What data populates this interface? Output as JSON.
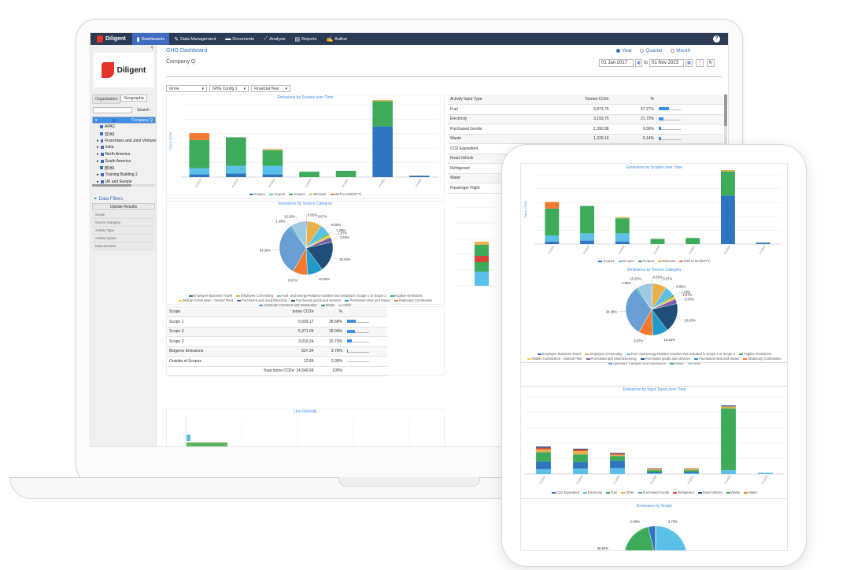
{
  "nav": {
    "brand": "Diligent",
    "items": [
      {
        "label": "Dashboards",
        "icon": "bar-chart-icon",
        "active": true
      },
      {
        "label": "Data Management",
        "icon": "edit-icon",
        "active": false
      },
      {
        "label": "Documents",
        "icon": "folder-icon",
        "active": false
      },
      {
        "label": "Analysis",
        "icon": "line-chart-icon",
        "active": false
      },
      {
        "label": "Reports",
        "icon": "report-icon",
        "active": false
      },
      {
        "label": "Author",
        "icon": "author-icon",
        "active": false
      }
    ],
    "help": "?"
  },
  "sidebar": {
    "logo_text": "Diligent",
    "tabs": [
      "Organisation",
      "Geographic"
    ],
    "search_button": "Search",
    "tree": [
      "Company Q",
      "APAC",
      "亚洲1",
      "Franchises and Joint Venture",
      "India",
      "North America",
      "South America",
      "欧洲1",
      "Training Building 2",
      "UK and Europe"
    ],
    "filters_title": "Data Filters",
    "update_button": "Update Results",
    "filters": [
      "Scope",
      "Source Category",
      "Activity Type",
      "Activity Inputs",
      "Data Streams"
    ]
  },
  "header": {
    "page_title": "GHG Dashboard",
    "company": "Company Q",
    "period_options": [
      "Year",
      "Quarter",
      "Month"
    ],
    "selected_period": "Year",
    "date_from": "01 Jan 2017",
    "date_to_label": "to",
    "date_to": "01 Nov 2023"
  },
  "filters_bar": {
    "unit": "tonne",
    "config": "GHG Config 1",
    "year": "Financial Year"
  },
  "scopes_chart": {
    "title": "Emissions by Scopes over Time",
    "ylabel": "Tonne CO2e",
    "legend": [
      "Scope1",
      "Scope2",
      "Scope3",
      "Biomass",
      "Well to tank(WTT)"
    ]
  },
  "category_chart": {
    "title": "Emissions by Source Category",
    "labels": [
      "0.65%",
      "9.67%",
      "10.23%",
      "6.56%",
      "1.06%",
      "1.28%",
      "1.87%",
      "3.26%",
      "34.36%",
      "20.03%",
      "9.67%",
      "10.32%"
    ],
    "legend": [
      "Employee Business Travel",
      "Employee Commuting",
      "Fuel- and Energy-Related Activities Not Included in Scope 1 or Scope 2",
      "Fugitive Emissions",
      "Mobile Combustion - Owned Fleet",
      "Purchased and Used Electricity",
      "Purchased goods and services",
      "Purchased Heat and Steam",
      "Stationary Combustion",
      "Upstream Transport and Distribution",
      "Waste",
      "Other"
    ]
  },
  "scope_table": {
    "headers": [
      "Scope",
      "tonne CO2e",
      "%"
    ],
    "rows": [
      [
        "Scope 1",
        "5,609.17",
        "38.58%"
      ],
      [
        "Scope 3",
        "5,371.06",
        "36.94%"
      ],
      [
        "Scope 2",
        "3,010.24",
        "20.70%"
      ],
      [
        "Biogenic Emissions",
        "537.34",
        "3.70%"
      ],
      [
        "Outside of Scopes",
        "12.85",
        "0.09%"
      ]
    ],
    "total": "Total tonne CO2e: 14,540.66",
    "total_pct": "100%"
  },
  "input_table": {
    "headers": [
      "Activity Input Type",
      "Tonnes CO2e",
      "%"
    ],
    "rows": [
      [
        "Fuel",
        "6,873.75",
        "47.27%"
      ],
      [
        "Electricity",
        "3,159.75",
        "21.73%"
      ],
      [
        "Purchased Goods",
        "1,392.88",
        "9.58%"
      ],
      [
        "Waste",
        "1,329.16",
        "9.14%"
      ],
      [
        "CO2 Equivalent",
        "",
        ""
      ],
      [
        "Road Vehicle",
        "",
        ""
      ],
      [
        "Refrigerant",
        "",
        ""
      ],
      [
        "Water",
        "",
        ""
      ],
      [
        "Passenger Flight",
        "",
        ""
      ]
    ]
  },
  "line_intensity": {
    "title": "Line Intensity"
  },
  "tablet": {
    "scopes_title": "Emissions by Scopes over Time",
    "category_title": "Emissions by Source Category",
    "input_title": "Emissions by Input Types over Time",
    "input_legend": [
      "CO2 Equivalent",
      "Electricity",
      "Fuel",
      "Other",
      "Purchased Goods",
      "Refrigerant",
      "Road Vehicle",
      "Waste",
      "Water"
    ],
    "scope_pie_title": "Emissions by Scope",
    "scope_pie_labels": [
      "0.09%",
      "3.70%",
      "36.94%"
    ]
  },
  "colors": {
    "scope1": "#2f74c0",
    "scope2": "#5bc0e8",
    "scope3": "#3dab5a",
    "biomass": "#e8b04d",
    "wtt": "#f07a32",
    "nav": "#2b3a55",
    "accent": "#3d8ee6"
  },
  "chart_data": [
    {
      "type": "bar",
      "title": "Emissions by Scopes over Time",
      "ylabel": "Tonne CO2e",
      "categories": [
        "FY2017",
        "FY2018",
        "FY2019",
        "FY2020",
        "FY2021",
        "FY2022",
        "FY2023"
      ],
      "series": [
        {
          "name": "Scope1",
          "values": [
            150,
            200,
            150,
            0,
            0,
            2800,
            80
          ]
        },
        {
          "name": "Scope2",
          "values": [
            350,
            420,
            470,
            0,
            0,
            0,
            0
          ]
        },
        {
          "name": "Scope3",
          "values": [
            1550,
            1580,
            870,
            300,
            350,
            1400,
            0
          ]
        },
        {
          "name": "Biomass",
          "values": [
            0,
            0,
            60,
            0,
            0,
            120,
            0
          ]
        },
        {
          "name": "Well to tank(WTT)",
          "values": [
            380,
            0,
            0,
            0,
            0,
            90,
            0
          ]
        }
      ],
      "ylim": [
        0,
        4000
      ]
    },
    {
      "type": "pie",
      "title": "Emissions by Source Category",
      "slices": [
        {
          "label": "0.65%",
          "value": 0.65
        },
        {
          "label": "9.67%",
          "value": 9.67
        },
        {
          "label": "6.56%",
          "value": 6.56
        },
        {
          "label": "1.28%",
          "value": 1.28
        },
        {
          "label": "1.87%",
          "value": 1.87
        },
        {
          "label": "3.26%",
          "value": 3.26
        },
        {
          "label": "20.03%",
          "value": 20.03
        },
        {
          "label": "10.32%",
          "value": 10.32
        },
        {
          "label": "9.67%",
          "value": 9.67
        },
        {
          "label": "34.36%",
          "value": 34.36
        },
        {
          "label": "1.06%",
          "value": 1.06
        },
        {
          "label": "10.23%",
          "value": 10.23
        }
      ]
    },
    {
      "type": "bar",
      "title": "Emissions by Input Types over Time",
      "categories": [
        "FY2017",
        "FY2018",
        "FY2019",
        "FY2020",
        "FY2021",
        "FY2022",
        "FY2023"
      ],
      "series": [
        {
          "name": "Electricity",
          "values": [
            250,
            280,
            300,
            40,
            40,
            200,
            60
          ]
        },
        {
          "name": "Fuel",
          "values": [
            380,
            330,
            380,
            60,
            60,
            0,
            0
          ]
        },
        {
          "name": "Waste",
          "values": [
            500,
            400,
            250,
            100,
            100,
            3200,
            0
          ]
        },
        {
          "name": "Purchased Goods",
          "values": [
            150,
            180,
            60,
            50,
            60,
            100,
            0
          ]
        },
        {
          "name": "Road Vehicle",
          "values": [
            80,
            80,
            60,
            20,
            20,
            0,
            0
          ]
        },
        {
          "name": "Other",
          "values": [
            60,
            40,
            40,
            20,
            10,
            50,
            0
          ]
        }
      ],
      "ylim": [
        0,
        4000
      ]
    },
    {
      "type": "pie",
      "title": "Emissions by Scope",
      "slices": [
        {
          "label": "38.58%",
          "value": 38.58
        },
        {
          "label": "36.94%",
          "value": 36.94
        },
        {
          "label": "20.70%",
          "value": 20.7
        },
        {
          "label": "3.70%",
          "value": 3.7
        },
        {
          "label": "0.09%",
          "value": 0.09
        }
      ]
    }
  ]
}
